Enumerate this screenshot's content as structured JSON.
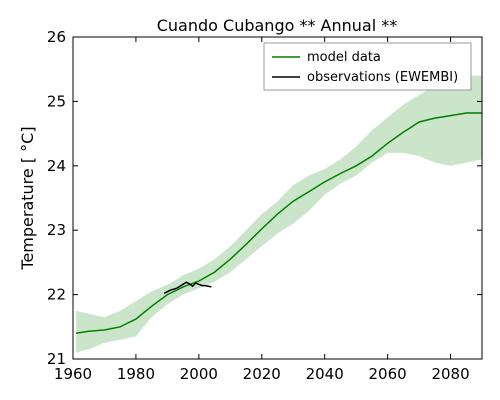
{
  "chart_data": {
    "type": "line",
    "title": "Cuando Cubango ** Annual **",
    "xlabel": "",
    "ylabel": "Temperature [ °C]",
    "xlim": [
      1960,
      2090
    ],
    "ylim": [
      21,
      26
    ],
    "xticks": [
      1960,
      1980,
      2000,
      2020,
      2040,
      2060,
      2080
    ],
    "yticks": [
      21,
      22,
      23,
      24,
      25,
      26
    ],
    "grid": false,
    "legend_position": "top-right",
    "colors": {
      "model": "#008000",
      "band": "#b9dcb9",
      "observations": "#000000"
    },
    "series": [
      {
        "name": "model data",
        "kind": "line_with_band",
        "x": [
          1961,
          1965,
          1970,
          1975,
          1980,
          1985,
          1990,
          1995,
          2000,
          2005,
          2010,
          2015,
          2020,
          2025,
          2030,
          2035,
          2040,
          2045,
          2050,
          2055,
          2060,
          2065,
          2070,
          2075,
          2080,
          2085,
          2090
        ],
        "y": [
          21.4,
          21.43,
          21.45,
          21.5,
          21.62,
          21.82,
          22.0,
          22.12,
          22.21,
          22.35,
          22.55,
          22.78,
          23.02,
          23.25,
          23.45,
          23.6,
          23.75,
          23.88,
          24.0,
          24.15,
          24.35,
          24.52,
          24.68,
          24.74,
          24.78,
          24.82,
          24.82
        ],
        "lower": [
          21.1,
          21.15,
          21.25,
          21.3,
          21.35,
          21.65,
          21.85,
          22.0,
          22.1,
          22.2,
          22.35,
          22.55,
          22.75,
          22.95,
          23.1,
          23.3,
          23.55,
          23.72,
          23.85,
          24.05,
          24.2,
          24.2,
          24.15,
          24.05,
          24.0,
          24.05,
          24.1
        ],
        "upper": [
          21.75,
          21.7,
          21.65,
          21.75,
          21.9,
          22.05,
          22.15,
          22.3,
          22.4,
          22.55,
          22.75,
          23.0,
          23.25,
          23.45,
          23.7,
          23.85,
          23.95,
          24.1,
          24.3,
          24.55,
          24.75,
          24.95,
          25.1,
          25.25,
          25.35,
          25.4,
          25.4
        ]
      },
      {
        "name": "observations (EWEMBI)",
        "kind": "line",
        "x": [
          1989,
          1991,
          1993,
          1995,
          1996,
          1997,
          1998,
          1999,
          2000,
          2001,
          2002,
          2004
        ],
        "y": [
          22.02,
          22.07,
          22.1,
          22.16,
          22.19,
          22.17,
          22.13,
          22.18,
          22.16,
          22.14,
          22.14,
          22.12
        ]
      }
    ]
  }
}
